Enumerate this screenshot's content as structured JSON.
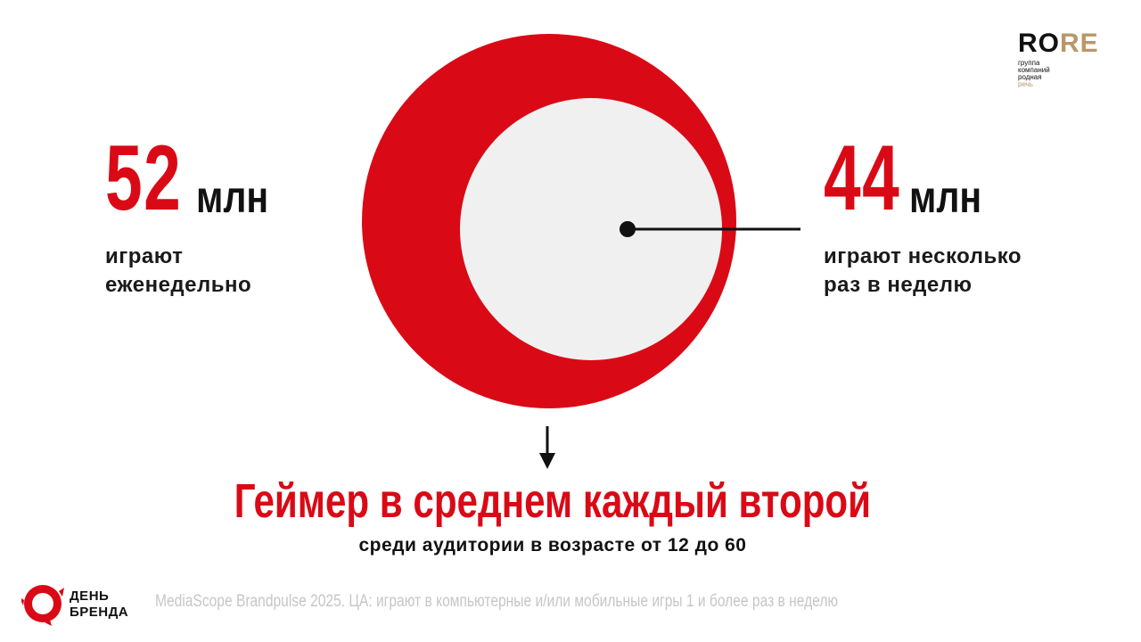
{
  "left_stat": {
    "number": "52",
    "unit": "млн",
    "desc_line1": "играют",
    "desc_line2": "еженедельно"
  },
  "right_stat": {
    "number": "44",
    "unit": "млн",
    "desc_line1": "играют несколько",
    "desc_line2": "раз в неделю"
  },
  "headline": {
    "main": "Геймер в среднем каждый второй",
    "sub": "среди аудитории в возрасте от 12 до 60"
  },
  "brand_logo": {
    "line1": "ДЕНЬ",
    "line2": "БРЕНДА"
  },
  "footnote": "MediaScope Brandpulse 2025. ЦА: играют в компьютерные и/или мобильные игры 1 и более раз в неделю",
  "corner_logo": {
    "word_part1": "RO",
    "word_part2": "RE",
    "line1": "группа",
    "line2": "компаний",
    "line3": "родная",
    "line4": "речь"
  },
  "colors": {
    "accent_red": "#d90a16",
    "inner_circle": "#f0f0f0",
    "gold": "#b8976a",
    "text": "#111111",
    "footnote_gray": "#c6c6c6"
  }
}
